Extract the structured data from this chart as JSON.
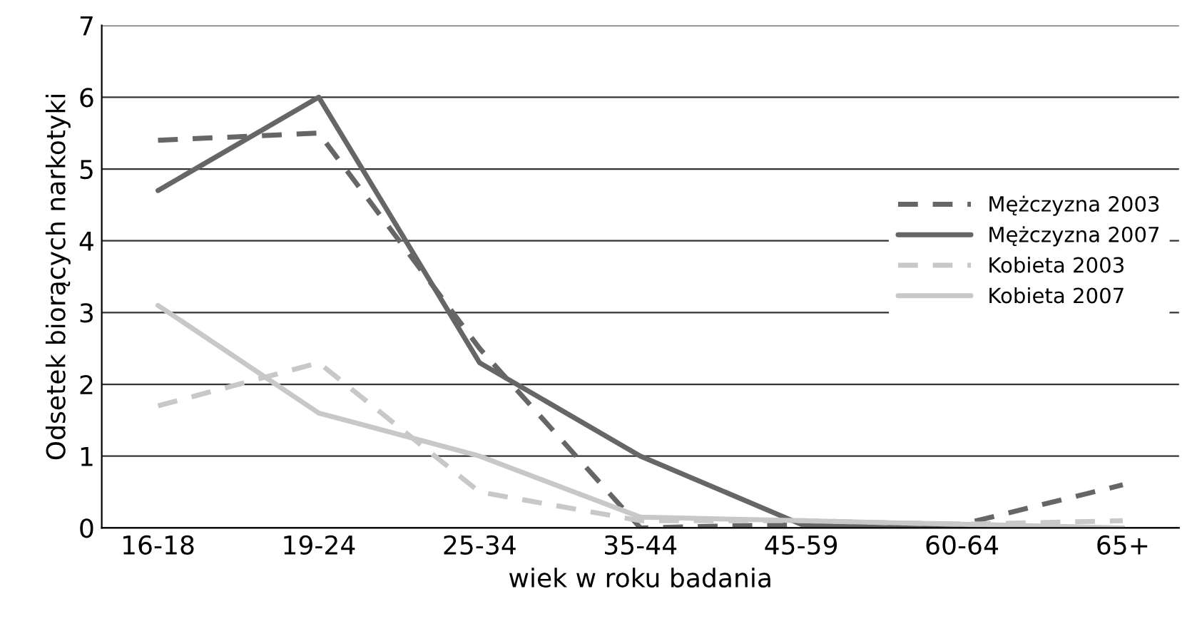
{
  "chart_data": {
    "type": "line",
    "xlabel": "wiek w roku badania",
    "ylabel": "Odsetek biorących narkotyki",
    "categories": [
      "16-18",
      "19-24",
      "25-34",
      "35-44",
      "45-59",
      "60-64",
      "65+"
    ],
    "series": [
      {
        "name": "Mężczyzna 2003",
        "color": "#666666",
        "line_style": "dashed",
        "values": [
          5.4,
          5.5,
          2.5,
          0,
          0.05,
          0.05,
          0.6
        ]
      },
      {
        "name": "Mężczyzna 2007",
        "color": "#666666",
        "line_style": "solid",
        "values": [
          4.7,
          6.0,
          2.3,
          1.0,
          0.05,
          0,
          0
        ]
      },
      {
        "name": "Kobieta 2003",
        "color": "#c8c8c8",
        "line_style": "dashed",
        "values": [
          1.7,
          2.3,
          0.5,
          0.1,
          0.1,
          0.05,
          0.1
        ]
      },
      {
        "name": "Kobieta 2007",
        "color": "#c8c8c8",
        "line_style": "solid",
        "values": [
          3.1,
          1.6,
          1.0,
          0.15,
          0.1,
          0.05,
          0
        ]
      }
    ],
    "ylim": [
      0,
      7
    ],
    "yticks": [
      0,
      1,
      2,
      3,
      4,
      5,
      6,
      7
    ],
    "grid": "y",
    "legend": "right",
    "marker": "none"
  }
}
